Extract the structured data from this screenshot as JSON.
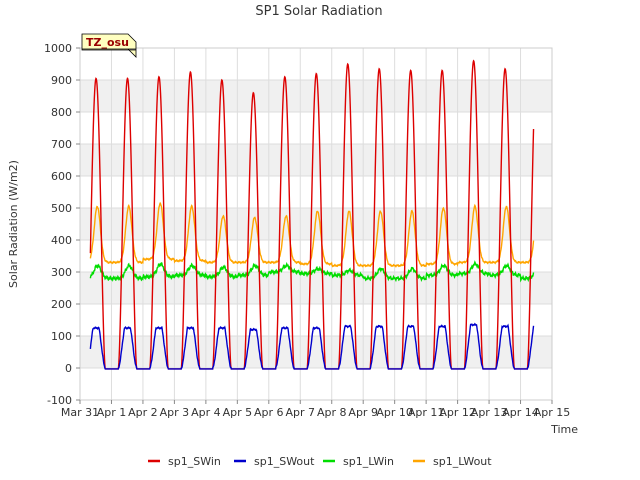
{
  "chart_data": {
    "type": "line",
    "title": "SP1 Solar Radiation",
    "xlabel": "Time",
    "ylabel": "Solar Radiation (W/m2)",
    "ylim": [
      -100,
      1000
    ],
    "yticks": [
      -100,
      0,
      100,
      200,
      300,
      400,
      500,
      600,
      700,
      800,
      900,
      1000
    ],
    "xlim_days": [
      0,
      15
    ],
    "xtick_labels": [
      "Mar 31",
      "Apr 1",
      "Apr 2",
      "Apr 3",
      "Apr 4",
      "Apr 5",
      "Apr 6",
      "Apr 7",
      "Apr 8",
      "Apr 9",
      "Apr 10",
      "Apr 11",
      "Apr 12",
      "Apr 13",
      "Apr 14",
      "Apr 15"
    ],
    "grid": true,
    "annotation_box": "TZ_osu",
    "legend_position": "bottom",
    "data_range_days": [
      0.33,
      14.42
    ],
    "daily_peaks": {
      "day_labels": [
        "Apr 1",
        "Apr 2",
        "Apr 3",
        "Apr 4",
        "Apr 5",
        "Apr 6",
        "Apr 7",
        "Apr 8",
        "Apr 9",
        "Apr 10",
        "Apr 11",
        "Apr 12",
        "Apr 13",
        "Apr 14"
      ],
      "sp1_SWin_peak": [
        905,
        910,
        925,
        900,
        860,
        910,
        920,
        950,
        935,
        930,
        930,
        960,
        935,
        940
      ],
      "sp1_SWout_peak": [
        125,
        125,
        125,
        125,
        120,
        125,
        125,
        130,
        130,
        130,
        130,
        135,
        130,
        130
      ],
      "sp1_LWin_night": [
        280,
        285,
        290,
        285,
        290,
        300,
        295,
        290,
        280,
        280,
        290,
        295,
        290,
        280
      ],
      "sp1_LWin_day": [
        320,
        325,
        320,
        315,
        320,
        320,
        310,
        305,
        310,
        310,
        320,
        325,
        320,
        310
      ],
      "sp1_LWout_night": [
        330,
        340,
        335,
        330,
        330,
        330,
        325,
        320,
        320,
        320,
        325,
        330,
        330,
        330
      ],
      "sp1_LWout_peak": [
        505,
        515,
        505,
        475,
        470,
        475,
        490,
        490,
        490,
        490,
        500,
        505,
        505,
        500
      ]
    },
    "series": [
      {
        "name": "sp1_SWin",
        "color": "#dd0000"
      },
      {
        "name": "sp1_SWout",
        "color": "#0000cc"
      },
      {
        "name": "sp1_LWin",
        "color": "#00dd00"
      },
      {
        "name": "sp1_LWout",
        "color": "#ffa500"
      }
    ]
  }
}
